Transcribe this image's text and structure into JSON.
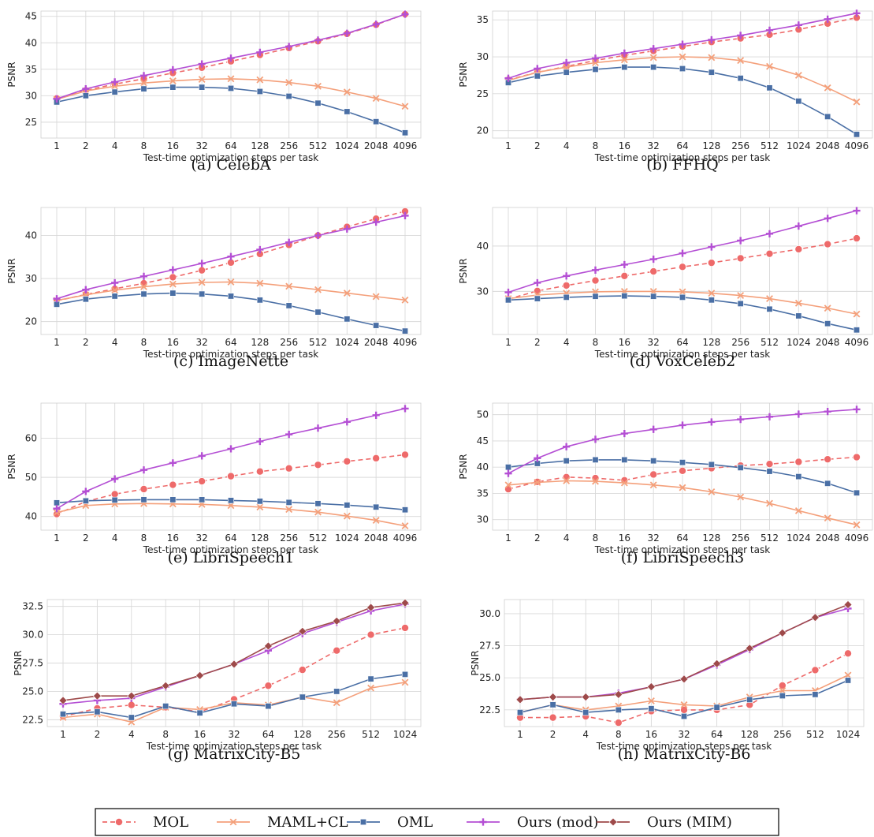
{
  "figure": {
    "legend": [
      {
        "key": "MOL",
        "label": "MOL"
      },
      {
        "key": "MAML+CL",
        "label": "MAML+CL"
      },
      {
        "key": "OML",
        "label": "OML"
      },
      {
        "key": "Ours (mod)",
        "label": "Ours (mod)"
      },
      {
        "key": "Ours (MIM)",
        "label": "Ours (MIM)"
      }
    ]
  },
  "styles": {
    "MOL": {
      "color": "#ee6a6a",
      "dash": true,
      "marker": "circle"
    },
    "MAML+CL": {
      "color": "#f4a07b",
      "dash": false,
      "marker": "x"
    },
    "OML": {
      "color": "#4a6fa5",
      "dash": false,
      "marker": "square"
    },
    "Ours (mod)": {
      "color": "#b44fd4",
      "dash": false,
      "marker": "plus"
    },
    "Ours (MIM)": {
      "color": "#9e4a4a",
      "dash": false,
      "marker": "diamond"
    }
  },
  "chart_data": [
    {
      "type": "line",
      "panel": "(a) CelebA",
      "title": "(a) CelebA",
      "xlabel": "Test-time optimization steps per task",
      "ylabel": "PSNR",
      "categories": [
        "1",
        "2",
        "4",
        "8",
        "16",
        "32",
        "64",
        "128",
        "256",
        "512",
        "1024",
        "2048",
        "4096"
      ],
      "ylim": [
        22,
        46
      ],
      "yticks": [
        25,
        30,
        35,
        40,
        45
      ],
      "series": [
        {
          "name": "MOL",
          "values": [
            29.5,
            31.0,
            32.2,
            33.2,
            34.3,
            35.3,
            36.5,
            37.7,
            39.0,
            40.3,
            41.7,
            43.4,
            45.4
          ]
        },
        {
          "name": "MAML+CL",
          "values": [
            29.3,
            30.9,
            31.8,
            32.4,
            32.8,
            33.1,
            33.2,
            33.0,
            32.5,
            31.8,
            30.7,
            29.5,
            28.0
          ]
        },
        {
          "name": "OML",
          "values": [
            28.8,
            30.0,
            30.7,
            31.3,
            31.6,
            31.6,
            31.4,
            30.8,
            29.9,
            28.6,
            27.0,
            25.1,
            23.0
          ]
        },
        {
          "name": "Ours (mod)",
          "values": [
            29.4,
            31.3,
            32.6,
            33.8,
            34.9,
            36.0,
            37.1,
            38.2,
            39.3,
            40.5,
            41.8,
            43.5,
            45.4
          ]
        }
      ]
    },
    {
      "type": "line",
      "panel": "(b) FFHQ",
      "title": "(b) FFHQ",
      "xlabel": "Test-time optimization steps per task",
      "ylabel": "PSNR",
      "categories": [
        "1",
        "2",
        "4",
        "8",
        "16",
        "32",
        "64",
        "128",
        "256",
        "512",
        "1024",
        "2048",
        "4096"
      ],
      "ylim": [
        19,
        36.2
      ],
      "yticks": [
        20,
        25,
        30,
        35
      ],
      "series": [
        {
          "name": "MOL",
          "values": [
            26.9,
            27.9,
            28.7,
            29.5,
            30.2,
            30.8,
            31.4,
            32.0,
            32.5,
            33.0,
            33.7,
            34.5,
            35.3
          ]
        },
        {
          "name": "MAML+CL",
          "values": [
            26.8,
            27.9,
            28.6,
            29.2,
            29.6,
            29.9,
            30.0,
            29.9,
            29.5,
            28.7,
            27.5,
            25.8,
            23.9
          ]
        },
        {
          "name": "OML",
          "values": [
            26.5,
            27.4,
            27.9,
            28.3,
            28.6,
            28.6,
            28.4,
            27.9,
            27.1,
            25.8,
            24.0,
            21.9,
            19.5
          ]
        },
        {
          "name": "Ours (mod)",
          "values": [
            27.1,
            28.4,
            29.2,
            29.8,
            30.5,
            31.1,
            31.7,
            32.3,
            32.9,
            33.6,
            34.3,
            35.1,
            35.9
          ]
        }
      ]
    },
    {
      "type": "line",
      "panel": "(c) ImageNette",
      "title": "(c) ImageNette",
      "xlabel": "Test-time optimization steps per task",
      "ylabel": "PSNR",
      "categories": [
        "1",
        "2",
        "4",
        "8",
        "16",
        "32",
        "64",
        "128",
        "256",
        "512",
        "1024",
        "2048",
        "4096"
      ],
      "ylim": [
        17,
        46.5
      ],
      "yticks": [
        20,
        30,
        40
      ],
      "series": [
        {
          "name": "MOL",
          "values": [
            24.8,
            26.3,
            27.6,
            28.9,
            30.3,
            31.9,
            33.7,
            35.7,
            37.8,
            40.0,
            42.0,
            43.9,
            45.6
          ]
        },
        {
          "name": "MAML+CL",
          "values": [
            24.9,
            26.2,
            27.3,
            28.1,
            28.7,
            29.1,
            29.2,
            28.9,
            28.2,
            27.4,
            26.6,
            25.8,
            25.0
          ]
        },
        {
          "name": "OML",
          "values": [
            24.0,
            25.2,
            25.9,
            26.4,
            26.6,
            26.4,
            25.9,
            25.0,
            23.7,
            22.2,
            20.6,
            19.1,
            17.8
          ]
        },
        {
          "name": "Ours (mod)",
          "values": [
            25.3,
            27.4,
            29.0,
            30.5,
            32.0,
            33.5,
            35.1,
            36.7,
            38.4,
            40.0,
            41.5,
            43.1,
            44.6
          ]
        }
      ]
    },
    {
      "type": "line",
      "panel": "(d) VoxCeleb2",
      "title": "(d) VoxCeleb2",
      "xlabel": "Test-time optimization steps per task",
      "ylabel": "PSNR",
      "categories": [
        "1",
        "2",
        "4",
        "8",
        "16",
        "32",
        "64",
        "128",
        "256",
        "512",
        "1024",
        "2048",
        "4096"
      ],
      "ylim": [
        20.5,
        48.5
      ],
      "yticks": [
        30,
        40
      ],
      "series": [
        {
          "name": "MOL",
          "values": [
            28.3,
            30.1,
            31.3,
            32.4,
            33.4,
            34.4,
            35.4,
            36.3,
            37.3,
            38.3,
            39.3,
            40.4,
            41.7
          ]
        },
        {
          "name": "MAML+CL",
          "values": [
            28.4,
            29.2,
            29.6,
            29.9,
            30.0,
            30.0,
            29.9,
            29.6,
            29.1,
            28.4,
            27.4,
            26.3,
            25.0
          ]
        },
        {
          "name": "OML",
          "values": [
            28.1,
            28.4,
            28.7,
            28.9,
            29.0,
            28.9,
            28.7,
            28.1,
            27.3,
            26.1,
            24.6,
            22.9,
            21.5
          ]
        },
        {
          "name": "Ours (mod)",
          "values": [
            29.8,
            31.9,
            33.4,
            34.7,
            35.9,
            37.1,
            38.4,
            39.8,
            41.2,
            42.7,
            44.4,
            46.1,
            47.8
          ]
        }
      ]
    },
    {
      "type": "line",
      "panel": "(e) LibriSpeech1",
      "title": "(e) LibriSpeech1",
      "xlabel": "Test-time optimization steps per task",
      "ylabel": "PSNR",
      "categories": [
        "1",
        "2",
        "4",
        "8",
        "16",
        "32",
        "64",
        "128",
        "256",
        "512",
        "1024",
        "2048",
        "4096"
      ],
      "ylim": [
        36.5,
        69
      ],
      "yticks": [
        40,
        50,
        60
      ],
      "series": [
        {
          "name": "MOL",
          "values": [
            40.6,
            43.8,
            45.7,
            47.0,
            48.1,
            49.0,
            50.3,
            51.5,
            52.3,
            53.2,
            54.1,
            54.9,
            55.8
          ]
        },
        {
          "name": "MAML+CL",
          "values": [
            41.0,
            42.8,
            43.2,
            43.3,
            43.2,
            43.1,
            42.8,
            42.4,
            41.8,
            41.1,
            40.1,
            39.0,
            37.6
          ]
        },
        {
          "name": "OML",
          "values": [
            43.5,
            44.0,
            44.2,
            44.3,
            44.3,
            44.3,
            44.1,
            43.9,
            43.6,
            43.3,
            42.9,
            42.4,
            41.7
          ]
        },
        {
          "name": "Ours (mod)",
          "values": [
            42.0,
            46.4,
            49.6,
            51.9,
            53.7,
            55.5,
            57.3,
            59.2,
            61.0,
            62.6,
            64.2,
            65.9,
            67.6
          ]
        }
      ]
    },
    {
      "type": "line",
      "panel": "(f) LibriSpeech3",
      "title": "(f) LibriSpeech3",
      "xlabel": "Test-time optimization steps per task",
      "ylabel": "PSNR",
      "categories": [
        "1",
        "2",
        "4",
        "8",
        "16",
        "32",
        "64",
        "128",
        "256",
        "512",
        "1024",
        "2048",
        "4096"
      ],
      "ylim": [
        28,
        52.2
      ],
      "yticks": [
        30,
        35,
        40,
        45,
        50
      ],
      "series": [
        {
          "name": "MOL",
          "values": [
            35.8,
            37.2,
            38.1,
            37.9,
            37.5,
            38.6,
            39.3,
            39.8,
            40.3,
            40.6,
            41.0,
            41.5,
            41.9
          ]
        },
        {
          "name": "MAML+CL",
          "values": [
            36.6,
            37.1,
            37.4,
            37.3,
            37.0,
            36.6,
            36.1,
            35.3,
            34.3,
            33.1,
            31.7,
            30.3,
            29.0
          ]
        },
        {
          "name": "OML",
          "values": [
            40.0,
            40.7,
            41.2,
            41.4,
            41.4,
            41.2,
            40.9,
            40.5,
            39.9,
            39.2,
            38.2,
            36.9,
            35.1
          ]
        },
        {
          "name": "Ours (mod)",
          "values": [
            38.8,
            41.7,
            43.9,
            45.3,
            46.4,
            47.2,
            48.0,
            48.6,
            49.1,
            49.6,
            50.1,
            50.6,
            51.0
          ]
        }
      ]
    },
    {
      "type": "line",
      "panel": "(g) MatrixCity-B5",
      "title": "(g) MatrixCity-B5",
      "xlabel": "Test-time optimization steps per task",
      "ylabel": "PSNR",
      "categories": [
        "1",
        "2",
        "4",
        "8",
        "16",
        "32",
        "64",
        "128",
        "256",
        "512",
        "1024"
      ],
      "ylim": [
        21.9,
        33.1
      ],
      "yticks": [
        22.5,
        25.0,
        27.5,
        30.0,
        32.5
      ],
      "series": [
        {
          "name": "MOL",
          "values": [
            22.8,
            23.5,
            23.8,
            23.6,
            23.2,
            24.3,
            25.5,
            26.9,
            28.6,
            30.0,
            30.6
          ]
        },
        {
          "name": "MAML+CL",
          "values": [
            22.7,
            23.0,
            22.3,
            23.6,
            23.4,
            24.0,
            23.8,
            24.5,
            24.0,
            25.3,
            25.8
          ]
        },
        {
          "name": "OML",
          "values": [
            23.0,
            23.2,
            22.7,
            23.7,
            23.1,
            23.9,
            23.7,
            24.5,
            25.0,
            26.1,
            26.5
          ]
        },
        {
          "name": "Ours (mod)",
          "values": [
            23.9,
            24.2,
            24.4,
            25.4,
            26.4,
            27.4,
            28.6,
            30.1,
            31.1,
            32.1,
            32.7
          ]
        },
        {
          "name": "Ours (MIM)",
          "values": [
            24.2,
            24.6,
            24.6,
            25.5,
            26.4,
            27.4,
            29.0,
            30.3,
            31.2,
            32.4,
            32.8
          ]
        }
      ]
    },
    {
      "type": "line",
      "panel": "(h) MatrixCity-B6",
      "title": "(h) MatrixCity-B6",
      "xlabel": "Test-time optimization steps per task",
      "ylabel": "PSNR",
      "categories": [
        "1",
        "2",
        "4",
        "8",
        "16",
        "32",
        "64",
        "128",
        "256",
        "512",
        "1024"
      ],
      "ylim": [
        21.2,
        31.1
      ],
      "yticks": [
        22.5,
        25.0,
        27.5,
        30.0
      ],
      "series": [
        {
          "name": "MOL",
          "values": [
            21.9,
            21.9,
            22.0,
            21.5,
            22.4,
            22.5,
            22.5,
            22.9,
            24.4,
            25.6,
            26.9
          ]
        },
        {
          "name": "MAML+CL",
          "values": [
            22.3,
            22.9,
            22.5,
            22.8,
            23.2,
            22.9,
            22.8,
            23.5,
            24.0,
            24.0,
            25.2
          ]
        },
        {
          "name": "OML",
          "values": [
            22.3,
            22.9,
            22.3,
            22.5,
            22.6,
            22.0,
            22.7,
            23.3,
            23.6,
            23.7,
            24.8
          ]
        },
        {
          "name": "Ours (mod)",
          "values": [
            23.3,
            23.5,
            23.5,
            23.8,
            24.3,
            24.9,
            26.0,
            27.2,
            28.5,
            29.7,
            30.4
          ]
        },
        {
          "name": "Ours (MIM)",
          "values": [
            23.3,
            23.5,
            23.5,
            23.7,
            24.3,
            24.9,
            26.1,
            27.3,
            28.5,
            29.7,
            30.7
          ]
        }
      ]
    }
  ]
}
